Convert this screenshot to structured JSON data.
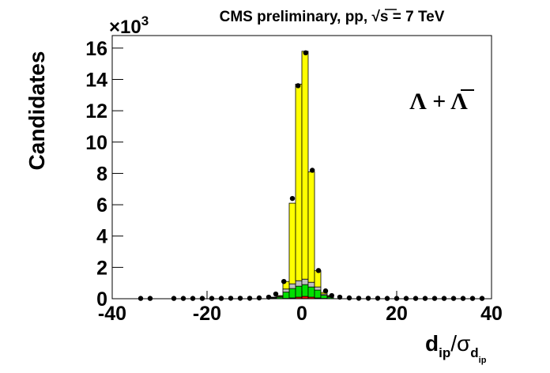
{
  "chart_data": {
    "type": "histogram",
    "title": "CMS preliminary, pp,  √s = 7 TeV",
    "y_label": "Candidates",
    "y_multiplier": {
      "base": "×10",
      "exponent": "3"
    },
    "x_label": {
      "main": "d",
      "sub": "ip",
      "divider": "/σ",
      "sub2": "d",
      "sub3": "ip"
    },
    "annotation": "Λ + Λ",
    "bins": [
      -6.67,
      -5.33,
      -4,
      -2.67,
      -1.33,
      0,
      1.33,
      2.67,
      4,
      5.33,
      6.67
    ],
    "series": [
      {
        "name": "red",
        "color": "#ff0000",
        "values": [
          0,
          0,
          0.02,
          0.05,
          0.1,
          0.15,
          0.1,
          0.05,
          0.02,
          0
        ]
      },
      {
        "name": "green",
        "color": "#00e000",
        "values": [
          0.05,
          0.1,
          0.4,
          0.6,
          0.7,
          0.75,
          0.65,
          0.5,
          0.2,
          0.1
        ]
      },
      {
        "name": "gray",
        "color": "#c0c0c0",
        "values": [
          0.02,
          0.05,
          0.2,
          0.3,
          0.35,
          0.35,
          0.3,
          0.2,
          0.08,
          0.05
        ]
      },
      {
        "name": "yellow",
        "color": "#ffff00",
        "values": [
          0.03,
          0.05,
          0.48,
          5.15,
          12.55,
          14.55,
          7.05,
          1.05,
          0.1,
          0.05
        ]
      }
    ],
    "points": {
      "color": "#000000",
      "x": [
        -34,
        -32,
        -27,
        -25,
        -23,
        -21,
        -19,
        -17,
        -15,
        -13,
        -11,
        -9,
        -7,
        -5.5,
        -3.8,
        -2,
        -0.8,
        0.8,
        2.2,
        3.5,
        5,
        6.3,
        8,
        10,
        12,
        14,
        16,
        18,
        20,
        22,
        24,
        26,
        28,
        30,
        32,
        34,
        36,
        38
      ],
      "values": [
        0.02,
        0.02,
        0.02,
        0.02,
        0.02,
        0.02,
        0.02,
        0.02,
        0.03,
        0.03,
        0.03,
        0.05,
        0.1,
        0.3,
        1.1,
        6.4,
        13.6,
        15.7,
        8.2,
        1.8,
        0.5,
        0.2,
        0.1,
        0.05,
        0.03,
        0.03,
        0.03,
        0.02,
        0.02,
        0.02,
        0.02,
        0.02,
        0.02,
        0.02,
        0.02,
        0.02,
        0.02,
        0.02
      ]
    },
    "xlim": [
      -40,
      40
    ],
    "xticks": [
      -40,
      -20,
      0,
      20,
      40
    ],
    "ylim": [
      0,
      16.8
    ],
    "yticks": [
      0,
      2,
      4,
      6,
      8,
      10,
      12,
      14,
      16
    ]
  }
}
